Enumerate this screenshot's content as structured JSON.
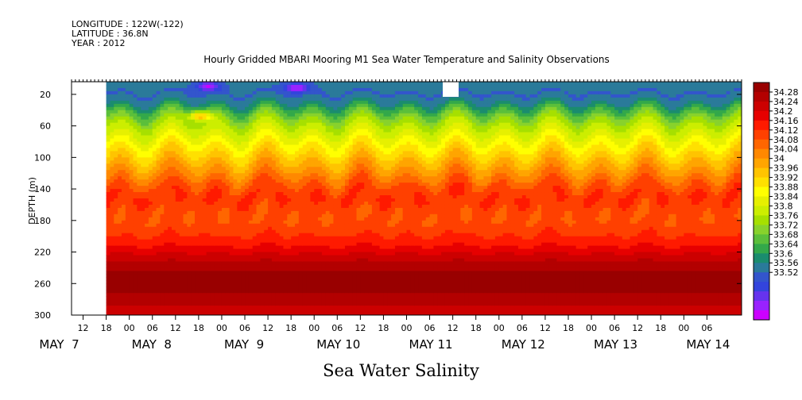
{
  "header": {
    "longitude": "LONGITUDE : 122W(-122)",
    "latitude": "LATITUDE : 36.8N",
    "year": "YEAR : 2012"
  },
  "chart_data": {
    "type": "heatmap",
    "title": "Hourly Gridded MBARI Mooring M1 Sea Water Temperature and Salinity Observations",
    "xlabel": "Sea Water Salinity",
    "ylabel": "DEPTH (m)",
    "ylim": [
      300,
      4
    ],
    "y_ticks": [
      20,
      60,
      100,
      140,
      180,
      220,
      260,
      300
    ],
    "x_start": "MAY 7 09:00",
    "x_end": "MAY 14 15:00",
    "data_start": "MAY 7 18:00",
    "x_hour_labels": [
      "12",
      "18",
      "00",
      "06",
      "12",
      "18",
      "00",
      "06",
      "12",
      "18",
      "00",
      "06",
      "12",
      "18",
      "00",
      "06",
      "12",
      "18",
      "00",
      "06",
      "12",
      "18",
      "00",
      "06",
      "12",
      "18",
      "00",
      "06"
    ],
    "x_hour_values": [
      12,
      18,
      24,
      30,
      36,
      42,
      48,
      54,
      60,
      66,
      72,
      78,
      84,
      90,
      96,
      102,
      108,
      114,
      120,
      126,
      132,
      138,
      144,
      150,
      156,
      162,
      168,
      174
    ],
    "x_day_labels": [
      {
        "label": "MAY  7",
        "hour": 0
      },
      {
        "label": "MAY  8",
        "hour": 24
      },
      {
        "label": "MAY  9",
        "hour": 48
      },
      {
        "label": "MAY 10",
        "hour": 72
      },
      {
        "label": "MAY 11",
        "hour": 96
      },
      {
        "label": "MAY 12",
        "hour": 120
      },
      {
        "label": "MAY 13",
        "hour": 144
      },
      {
        "label": "MAY 14",
        "hour": 168
      }
    ],
    "colorbar": {
      "levels": [
        "34.28",
        "34.24",
        "34.2",
        "34.16",
        "34.12",
        "34.08",
        "34.04",
        "34",
        "33.96",
        "33.92",
        "33.88",
        "33.84",
        "33.8",
        "33.76",
        "33.72",
        "33.68",
        "33.64",
        "33.6",
        "33.56",
        "33.52"
      ],
      "colors": [
        "#990000",
        "#b30000",
        "#cc0000",
        "#e60000",
        "#ff1a00",
        "#ff4000",
        "#ff6600",
        "#ff8800",
        "#ffa500",
        "#ffc400",
        "#ffe000",
        "#ffff00",
        "#e6f000",
        "#ccee00",
        "#a6e000",
        "#88d22c",
        "#5bbf3b",
        "#33a84a",
        "#1a8c6e",
        "#2a7a9a",
        "#3355cc",
        "#3344dd",
        "#6633ee",
        "#9922ff",
        "#cc00ff"
      ]
    },
    "profile": {
      "depth": [
        4,
        20,
        30,
        40,
        55,
        70,
        85,
        100,
        110,
        120,
        135,
        150,
        165,
        180,
        195,
        210,
        222,
        235,
        248,
        258,
        268,
        280,
        292,
        300
      ],
      "salinity": [
        33.68,
        33.67,
        33.7,
        33.76,
        33.84,
        33.89,
        33.94,
        33.99,
        34.02,
        34.05,
        34.1,
        34.13,
        34.11,
        34.1,
        34.12,
        34.15,
        34.19,
        34.23,
        34.26,
        34.28,
        34.26,
        34.23,
        34.21,
        34.2
      ]
    },
    "features": [
      {
        "label": "low salinity patch",
        "hour_center": 44,
        "depth_center": 10,
        "value": 33.54
      },
      {
        "label": "low salinity patch",
        "hour_center": 67,
        "depth_center": 12,
        "value": 33.55
      },
      {
        "label": "yellow intrusion",
        "hour_center": 42,
        "depth_center": 48,
        "value": 34.0
      }
    ]
  }
}
